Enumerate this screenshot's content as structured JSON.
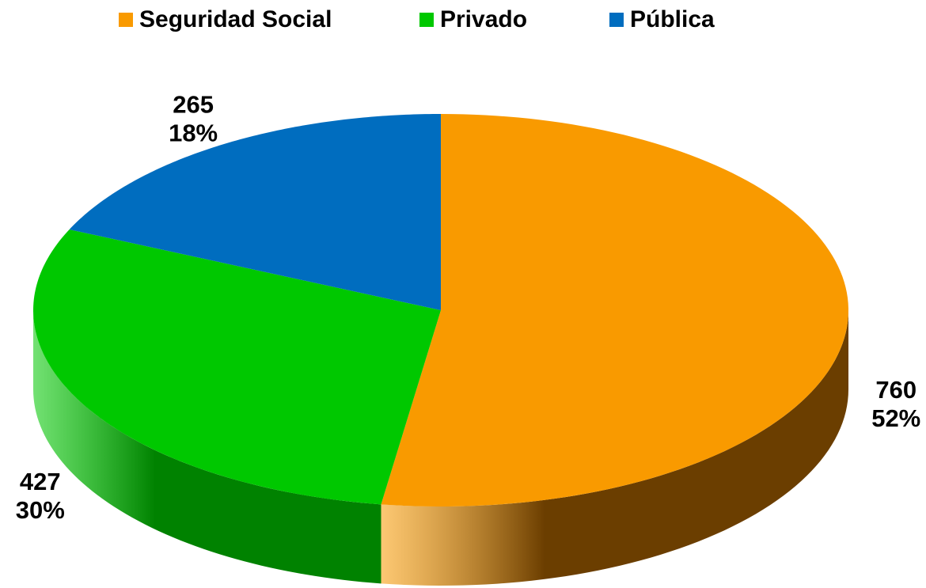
{
  "chart_data": {
    "type": "pie",
    "categories": [
      "Seguridad Social",
      "Privado",
      "Pública"
    ],
    "values": [
      760,
      427,
      265
    ],
    "percent_labels": [
      "52%",
      "30%",
      "18%"
    ],
    "colors": [
      "#f99a00",
      "#00c800",
      "#006dbf"
    ],
    "side_colors": [
      "#6b3e00",
      "#008200",
      "#00457a"
    ],
    "legend": "top"
  }
}
